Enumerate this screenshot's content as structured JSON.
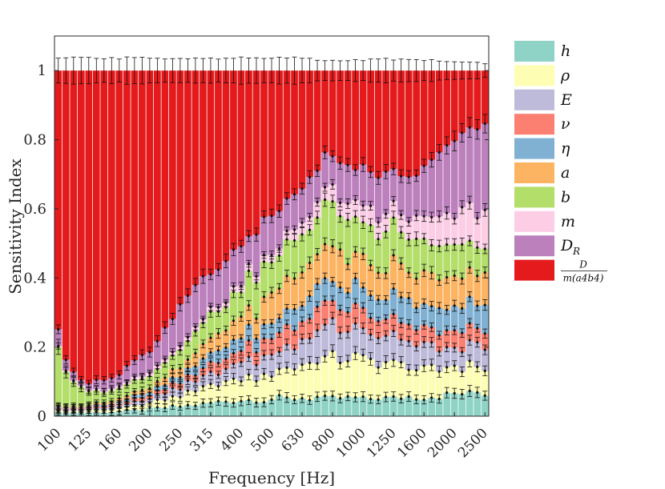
{
  "chart_data": {
    "type": "stacked-bar",
    "xlabel": "Frequency [Hz]",
    "ylabel": "Sensitivity Index",
    "ylim": [
      0,
      1.1
    ],
    "yticks": [
      "0",
      "0.2",
      "0.4",
      "0.6",
      "0.8",
      "1"
    ],
    "ytick_values": [
      0,
      0.2,
      0.4,
      0.6,
      0.8,
      1.0
    ],
    "tick_labels": [
      "100",
      "125",
      "160",
      "200",
      "250",
      "315",
      "400",
      "500",
      "630",
      "800",
      "1000",
      "1250",
      "1600",
      "2000",
      "2500"
    ],
    "tick_positions": [
      1,
      5,
      9,
      13,
      17,
      21,
      25,
      29,
      33,
      37,
      41,
      45,
      49,
      53,
      57
    ],
    "bar_count": 57,
    "error_bars": true,
    "series": [
      {
        "name": "h",
        "label_main": "h",
        "label_sub": "",
        "color": "#8fd3c7",
        "anchors": [
          [
            1,
            0.01
          ],
          [
            4,
            0.01
          ],
          [
            8,
            0.012
          ],
          [
            13,
            0.02
          ],
          [
            18,
            0.03
          ],
          [
            24,
            0.045
          ],
          [
            30,
            0.05
          ],
          [
            36,
            0.05
          ],
          [
            42,
            0.048
          ],
          [
            48,
            0.052
          ],
          [
            54,
            0.055
          ],
          [
            57,
            0.052
          ]
        ]
      },
      {
        "name": "rho",
        "label_main": "ρ",
        "label_sub": "",
        "color": "#fdfdb3",
        "anchors": [
          [
            1,
            0.005
          ],
          [
            4,
            0.005
          ],
          [
            8,
            0.008
          ],
          [
            13,
            0.015
          ],
          [
            18,
            0.035
          ],
          [
            24,
            0.06
          ],
          [
            30,
            0.08
          ],
          [
            36,
            0.11
          ],
          [
            42,
            0.105
          ],
          [
            48,
            0.08
          ],
          [
            54,
            0.065
          ],
          [
            57,
            0.06
          ]
        ]
      },
      {
        "name": "E",
        "label_main": "E",
        "label_sub": "",
        "color": "#bebada",
        "anchors": [
          [
            1,
            0.004
          ],
          [
            4,
            0.004
          ],
          [
            8,
            0.006
          ],
          [
            13,
            0.012
          ],
          [
            18,
            0.025
          ],
          [
            24,
            0.045
          ],
          [
            30,
            0.06
          ],
          [
            36,
            0.085
          ],
          [
            42,
            0.08
          ],
          [
            48,
            0.06
          ],
          [
            54,
            0.05
          ],
          [
            57,
            0.045
          ]
        ]
      },
      {
        "name": "nu",
        "label_main": "ν",
        "label_sub": "",
        "color": "#fb8072",
        "anchors": [
          [
            1,
            0.003
          ],
          [
            4,
            0.003
          ],
          [
            8,
            0.005
          ],
          [
            13,
            0.01
          ],
          [
            18,
            0.02
          ],
          [
            24,
            0.035
          ],
          [
            30,
            0.05
          ],
          [
            36,
            0.06
          ],
          [
            42,
            0.055
          ],
          [
            48,
            0.045
          ],
          [
            54,
            0.04
          ],
          [
            57,
            0.035
          ]
        ]
      },
      {
        "name": "eta",
        "label_main": "η",
        "label_sub": "",
        "color": "#80b1d3",
        "anchors": [
          [
            1,
            0.003
          ],
          [
            4,
            0.003
          ],
          [
            8,
            0.005
          ],
          [
            13,
            0.01
          ],
          [
            18,
            0.02
          ],
          [
            24,
            0.035
          ],
          [
            30,
            0.045
          ],
          [
            36,
            0.06
          ],
          [
            42,
            0.06
          ],
          [
            48,
            0.065
          ],
          [
            54,
            0.065
          ],
          [
            57,
            0.06
          ]
        ]
      },
      {
        "name": "a",
        "label_main": "a",
        "label_sub": "",
        "color": "#fdb462",
        "anchors": [
          [
            1,
            0.003
          ],
          [
            4,
            0.003
          ],
          [
            8,
            0.006
          ],
          [
            13,
            0.012
          ],
          [
            18,
            0.03
          ],
          [
            24,
            0.05
          ],
          [
            30,
            0.08
          ],
          [
            36,
            0.09
          ],
          [
            42,
            0.085
          ],
          [
            48,
            0.08
          ],
          [
            54,
            0.075
          ],
          [
            57,
            0.07
          ]
        ]
      },
      {
        "name": "b",
        "label_main": "b",
        "label_sub": "",
        "color": "#b3de69",
        "anchors": [
          [
            1,
            0.15
          ],
          [
            4,
            0.05
          ],
          [
            8,
            0.03
          ],
          [
            13,
            0.03
          ],
          [
            18,
            0.05
          ],
          [
            24,
            0.08
          ],
          [
            30,
            0.1
          ],
          [
            36,
            0.11
          ],
          [
            42,
            0.1
          ],
          [
            48,
            0.09
          ],
          [
            54,
            0.07
          ],
          [
            57,
            0.06
          ]
        ]
      },
      {
        "name": "m",
        "label_main": "m",
        "label_sub": "",
        "color": "#fccde5",
        "anchors": [
          [
            1,
            0.003
          ],
          [
            4,
            0.003
          ],
          [
            8,
            0.004
          ],
          [
            13,
            0.008
          ],
          [
            18,
            0.01
          ],
          [
            24,
            0.015
          ],
          [
            30,
            0.025
          ],
          [
            36,
            0.04
          ],
          [
            42,
            0.05
          ],
          [
            48,
            0.06
          ],
          [
            54,
            0.08
          ],
          [
            57,
            0.08
          ]
        ]
      },
      {
        "name": "D_R",
        "label_main": "D",
        "label_sub": "R",
        "color": "#bc80bd",
        "anchors": [
          [
            1,
            0.04
          ],
          [
            4,
            0.02
          ],
          [
            8,
            0.03
          ],
          [
            13,
            0.07
          ],
          [
            18,
            0.11
          ],
          [
            24,
            0.1
          ],
          [
            30,
            0.1
          ],
          [
            36,
            0.1
          ],
          [
            42,
            0.1
          ],
          [
            48,
            0.11
          ],
          [
            54,
            0.18
          ],
          [
            57,
            0.2
          ]
        ]
      },
      {
        "name": "D_ratio",
        "label_main": "D",
        "label_sub": "m(a4b4)",
        "color": "#e41a1c",
        "anchors": [
          [
            1,
            0.74
          ],
          [
            4,
            0.88
          ],
          [
            8,
            0.88
          ],
          [
            13,
            0.79
          ],
          [
            18,
            0.65
          ],
          [
            24,
            0.52
          ],
          [
            30,
            0.4
          ],
          [
            36,
            0.24
          ],
          [
            42,
            0.28
          ],
          [
            48,
            0.28
          ],
          [
            54,
            0.15
          ],
          [
            57,
            0.12
          ]
        ]
      }
    ]
  }
}
